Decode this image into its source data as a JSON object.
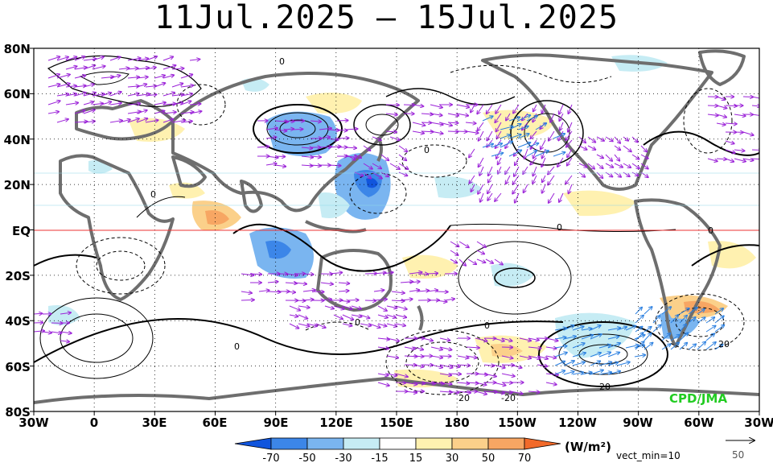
{
  "title": "11Jul.2025 – 15Jul.2025",
  "lat_labels": [
    "80N",
    "60N",
    "40N",
    "20N",
    "EQ",
    "20S",
    "40S",
    "60S",
    "80S"
  ],
  "lon_labels": [
    "30W",
    "0",
    "30E",
    "60E",
    "90E",
    "120E",
    "150E",
    "180",
    "150W",
    "120W",
    "90W",
    "60W",
    "30W"
  ],
  "credit": "CPD/JMA",
  "legend": {
    "levels": [
      "-70",
      "-50",
      "-30",
      "-15",
      "15",
      "30",
      "50",
      "70"
    ],
    "unit": "(W/m²)",
    "vect_min": "vect_min=10",
    "ref_vector": "50",
    "colors": [
      "#1155dd",
      "#3c86e8",
      "#7ab5f0",
      "#c6ecf4",
      "#ffffff",
      "#fff1b0",
      "#fbd08a",
      "#f7a663",
      "#f26a2a"
    ]
  },
  "contour_labels": [
    "0",
    "0",
    "0",
    "0",
    "0",
    "0",
    "0",
    "0",
    "-20",
    "20",
    "20",
    "20"
  ]
}
